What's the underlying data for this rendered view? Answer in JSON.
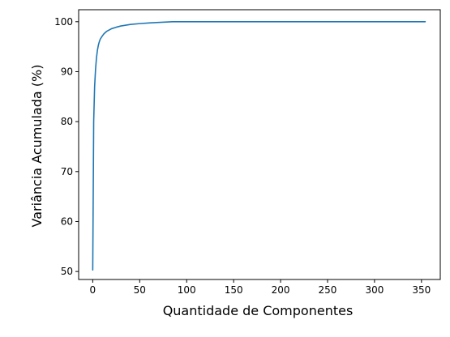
{
  "chart_data": {
    "type": "line",
    "title": "",
    "xlabel": "Quantidade de Componentes",
    "ylabel": "Variância Acumulada (%)",
    "xlim": [
      -15,
      370
    ],
    "ylim": [
      48.4,
      102.4
    ],
    "xticks": [
      0,
      50,
      100,
      150,
      200,
      250,
      300,
      350
    ],
    "yticks": [
      50,
      60,
      70,
      80,
      90,
      100
    ],
    "xtick_labels": [
      "0",
      "50",
      "100",
      "150",
      "200",
      "250",
      "300",
      "350"
    ],
    "ytick_labels": [
      "50",
      "60",
      "70",
      "80",
      "90",
      "100"
    ],
    "grid": false,
    "series": [
      {
        "color": "#1f77b4",
        "x": [
          0,
          1,
          2,
          3,
          4,
          5,
          6,
          7,
          8,
          10,
          12,
          15,
          20,
          25,
          30,
          40,
          50,
          60,
          70,
          85,
          100,
          150,
          200,
          250,
          300,
          354
        ],
        "y": [
          50.3,
          80.0,
          87.0,
          90.5,
          92.8,
          94.3,
          95.3,
          96.0,
          96.5,
          97.1,
          97.6,
          98.1,
          98.6,
          98.9,
          99.15,
          99.45,
          99.62,
          99.75,
          99.85,
          100.0,
          100.0,
          100.0,
          100.0,
          100.0,
          100.0,
          100.0
        ]
      }
    ]
  }
}
